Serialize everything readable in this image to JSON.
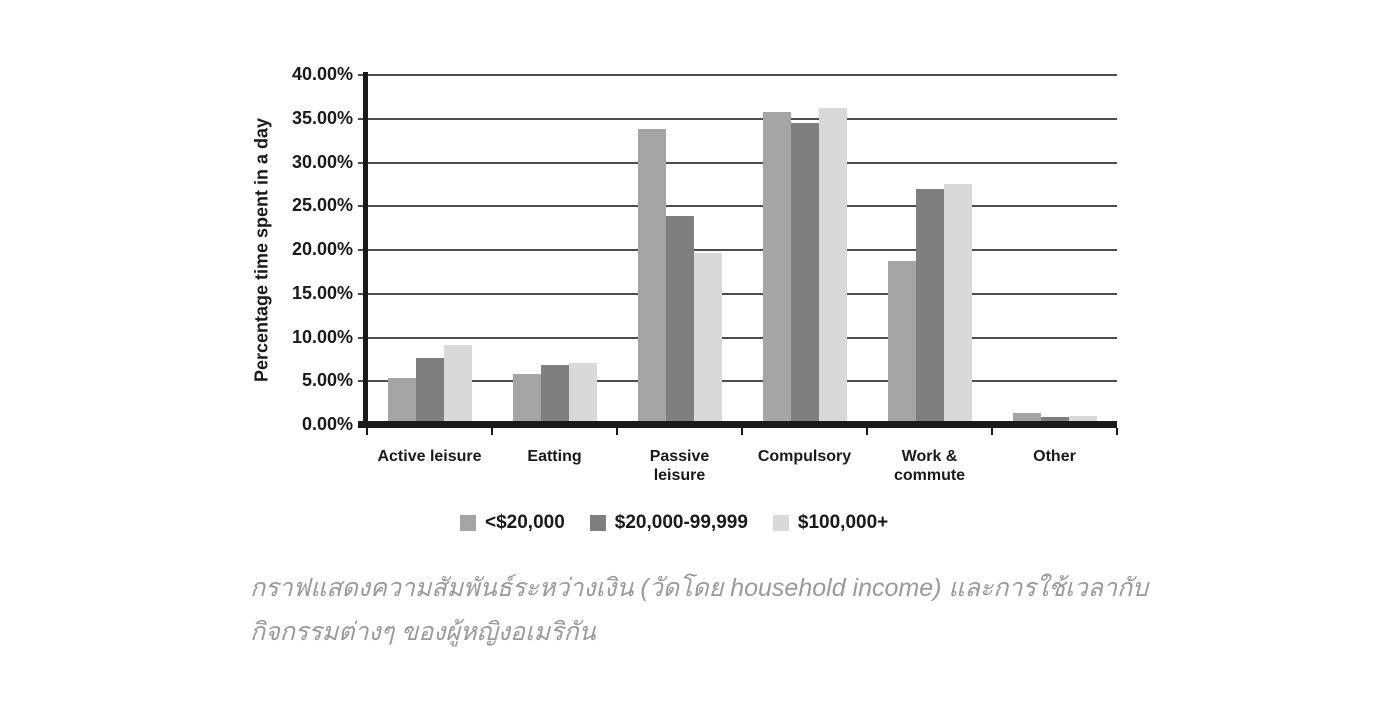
{
  "figure": {
    "background": "#ffffff"
  },
  "chart_data": {
    "type": "bar",
    "title": "",
    "xlabel": "",
    "ylabel": "Percentage time spent in a day",
    "ylim": [
      0,
      40
    ],
    "ytick_step": 5,
    "ytick_suffix": "%",
    "ytick_decimals": 2,
    "grid": true,
    "legend_position": "bottom",
    "categories": [
      "Active leisure",
      "Eatting",
      "Passive leisure",
      "Compulsory",
      "Work & commute",
      "Other"
    ],
    "category_label_lines": [
      [
        "Active leisure"
      ],
      [
        "Eatting"
      ],
      [
        "Passive",
        "leisure"
      ],
      [
        "Compulsory"
      ],
      [
        "Work &",
        "commute"
      ],
      [
        "Other"
      ]
    ],
    "series": [
      {
        "name": "<$20,000",
        "color": "#a5a5a5",
        "values": [
          5.3,
          5.7,
          33.7,
          35.7,
          18.6,
          1.2
        ]
      },
      {
        "name": "$20,000-99,999",
        "color": "#7f7f7f",
        "values": [
          7.5,
          6.7,
          23.8,
          34.4,
          26.8,
          0.8
        ]
      },
      {
        "name": "$100,000+",
        "color": "#d9d9d9",
        "values": [
          9.0,
          7.0,
          19.5,
          36.1,
          27.4,
          0.9
        ]
      }
    ]
  },
  "colors": {
    "axis": "#1a1a1a",
    "gridline": "#4d4d4d",
    "caption_text": "#9a9a9a"
  },
  "caption": {
    "line1": "กราฟแสดงความสัมพันธ์ระหว่างเงิน (วัดโดย household income) และการใช้เวลากับ",
    "line2": "กิจกรรมต่างๆ ของผู้หญิงอเมริกัน"
  }
}
